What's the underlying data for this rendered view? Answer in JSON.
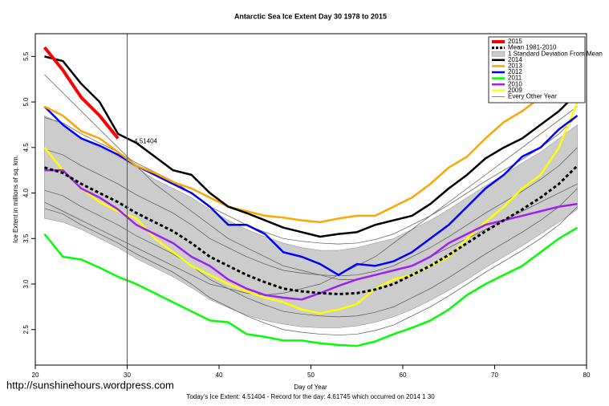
{
  "chart_data": {
    "type": "line",
    "title": "Antarctic Sea Ice Extent Day 30 1978 to 2015",
    "x_label": "Day of Year",
    "y_label": "Ice Extent in millions of sq. km.",
    "footer": "Today's Ice Extent: 4.51404  -  Record for the day: 4.61745 which occurred on 2014 1 30",
    "watermark": "http://sunshinehours.wordpress.com",
    "annotation": "4.51404",
    "marker_x": 30,
    "legend": "topright",
    "xlim": [
      20,
      80
    ],
    "ylim": [
      2.11,
      5.75
    ],
    "xticks": [
      20,
      30,
      40,
      50,
      60,
      70,
      80
    ],
    "yticks": [
      2.5,
      {
        "value": 3,
        "label": "3.0"
      },
      3.5,
      {
        "value": 4,
        "label": "4.0"
      },
      4.5,
      {
        "value": 5,
        "label": "5.0"
      },
      5.5
    ],
    "x": [
      21,
      23,
      25,
      27,
      29,
      31,
      33,
      35,
      37,
      39,
      41,
      43,
      45,
      47,
      49,
      51,
      53,
      55,
      57,
      59,
      61,
      63,
      65,
      67,
      69,
      71,
      73,
      75,
      77,
      79
    ],
    "band": {
      "name": "1 Standard Deviation From Mean",
      "color": "#cccccc",
      "upper": [
        4.85,
        4.75,
        4.6,
        4.5,
        4.4,
        4.28,
        4.15,
        4.05,
        3.95,
        3.82,
        3.7,
        3.6,
        3.52,
        3.45,
        3.4,
        3.37,
        3.37,
        3.4,
        3.45,
        3.5,
        3.6,
        3.7,
        3.82,
        3.95,
        4.08,
        4.2,
        4.33,
        4.45,
        4.6,
        4.75
      ],
      "lower": [
        3.72,
        3.68,
        3.6,
        3.5,
        3.4,
        3.28,
        3.18,
        3.08,
        2.96,
        2.83,
        2.74,
        2.66,
        2.6,
        2.56,
        2.53,
        2.52,
        2.52,
        2.54,
        2.58,
        2.64,
        2.72,
        2.82,
        2.93,
        3.05,
        3.18,
        3.3,
        3.42,
        3.55,
        3.68,
        3.82
      ]
    },
    "series": [
      {
        "name": "2015",
        "color": "#ff0000",
        "width": 4,
        "values": [
          5.6,
          5.35,
          5.05,
          4.85,
          4.6,
          null,
          null,
          null,
          null,
          null,
          null,
          null,
          null,
          null,
          null,
          null,
          null,
          null,
          null,
          null,
          null,
          null,
          null,
          null,
          null,
          null,
          null,
          null,
          null,
          null
        ]
      },
      {
        "name": "Mean 1981-2010",
        "color": "#000000",
        "width": 3,
        "dash": true,
        "values": [
          4.28,
          4.22,
          4.1,
          4.0,
          3.9,
          3.78,
          3.68,
          3.58,
          3.45,
          3.3,
          3.2,
          3.1,
          3.02,
          2.95,
          2.92,
          2.9,
          2.89,
          2.9,
          2.94,
          3.0,
          3.1,
          3.2,
          3.32,
          3.45,
          3.58,
          3.7,
          3.82,
          3.95,
          4.1,
          4.3
        ]
      },
      {
        "name": "2014",
        "color": "#000000",
        "width": 2.5,
        "values": [
          5.5,
          5.45,
          5.2,
          5.0,
          4.65,
          4.55,
          4.4,
          4.25,
          4.2,
          4.0,
          3.85,
          3.78,
          3.7,
          3.62,
          3.57,
          3.52,
          3.55,
          3.57,
          3.65,
          3.7,
          3.75,
          3.88,
          4.05,
          4.2,
          4.38,
          4.5,
          4.6,
          4.75,
          4.9,
          5.1
        ]
      },
      {
        "name": "2013",
        "color": "#ffa500",
        "width": 2.5,
        "values": [
          4.95,
          4.85,
          4.68,
          4.6,
          4.45,
          4.3,
          4.22,
          4.12,
          4.05,
          3.95,
          3.85,
          3.8,
          3.75,
          3.73,
          3.7,
          3.68,
          3.72,
          3.75,
          3.75,
          3.85,
          3.95,
          4.1,
          4.28,
          4.4,
          4.6,
          4.78,
          4.9,
          5.05,
          5.2,
          5.27
        ]
      },
      {
        "name": "2012",
        "color": "#0000ff",
        "width": 2.5,
        "values": [
          4.95,
          4.75,
          4.6,
          4.52,
          4.42,
          4.3,
          4.2,
          4.1,
          4.0,
          3.85,
          3.65,
          3.65,
          3.55,
          3.35,
          3.3,
          3.22,
          3.1,
          3.22,
          3.2,
          3.25,
          3.35,
          3.5,
          3.65,
          3.85,
          4.05,
          4.2,
          4.4,
          4.5,
          4.7,
          4.85
        ]
      },
      {
        "name": "2011",
        "color": "#00ff00",
        "width": 2.5,
        "values": [
          3.55,
          3.3,
          3.27,
          3.18,
          3.08,
          3.0,
          2.9,
          2.8,
          2.7,
          2.6,
          2.58,
          2.45,
          2.42,
          2.38,
          2.38,
          2.35,
          2.33,
          2.32,
          2.37,
          2.45,
          2.52,
          2.6,
          2.72,
          2.88,
          3.0,
          3.1,
          3.2,
          3.35,
          3.5,
          3.62
        ]
      },
      {
        "name": "2010",
        "color": "#a020f0",
        "width": 2.5,
        "values": [
          4.25,
          4.25,
          4.05,
          3.95,
          3.82,
          3.65,
          3.55,
          3.45,
          3.3,
          3.2,
          3.05,
          2.95,
          2.88,
          2.85,
          2.83,
          2.9,
          2.98,
          3.05,
          3.1,
          3.15,
          3.2,
          3.3,
          3.45,
          3.55,
          3.65,
          3.7,
          3.75,
          3.8,
          3.85,
          3.88
        ]
      },
      {
        "name": "2009",
        "color": "#ffff00",
        "width": 2.5,
        "values": [
          4.5,
          4.25,
          4.05,
          3.9,
          3.8,
          3.72,
          3.5,
          3.35,
          3.2,
          3.1,
          3.0,
          2.92,
          2.85,
          2.8,
          2.72,
          2.68,
          2.72,
          2.78,
          2.95,
          3.05,
          3.1,
          3.2,
          3.3,
          3.5,
          3.68,
          3.85,
          4.05,
          4.2,
          4.5,
          5.0
        ]
      }
    ],
    "other_years": {
      "name": "Every Other Year",
      "color": "#555555",
      "lines": [
        [
          4.83,
          4.77,
          4.65,
          4.55,
          4.45,
          4.33,
          4.23,
          4.13,
          4.0,
          3.85,
          3.75,
          3.65,
          3.57,
          3.5,
          3.47,
          3.45,
          3.44,
          3.45,
          3.49,
          3.55,
          3.65,
          3.75,
          3.87,
          4.0,
          4.13,
          4.25,
          4.37,
          4.5,
          4.65,
          4.85
        ],
        [
          4.48,
          4.42,
          4.3,
          4.2,
          4.1,
          3.98,
          3.88,
          3.78,
          3.65,
          3.5,
          3.4,
          3.3,
          3.22,
          3.15,
          3.12,
          3.1,
          3.09,
          3.1,
          3.14,
          3.2,
          3.3,
          3.4,
          3.52,
          3.65,
          3.78,
          3.9,
          4.02,
          4.15,
          4.3,
          4.5
        ],
        [
          4.03,
          3.97,
          3.85,
          3.75,
          3.65,
          3.53,
          3.43,
          3.33,
          3.2,
          3.05,
          2.95,
          2.85,
          2.77,
          2.7,
          2.67,
          2.65,
          2.64,
          2.65,
          2.69,
          2.75,
          2.85,
          2.95,
          3.07,
          3.2,
          3.33,
          3.45,
          3.57,
          3.7,
          3.85,
          4.05
        ],
        [
          3.83,
          3.77,
          3.65,
          3.55,
          3.45,
          3.33,
          3.23,
          3.13,
          3.0,
          2.85,
          2.75,
          2.65,
          2.57,
          2.5,
          2.47,
          2.45,
          2.44,
          2.45,
          2.49,
          2.55,
          2.65,
          2.75,
          2.87,
          3.0,
          3.13,
          3.25,
          3.37,
          3.5,
          3.65,
          3.85
        ],
        [
          5.3,
          5.1,
          4.9,
          4.7,
          4.5,
          4.3,
          4.1,
          3.95,
          3.8,
          3.65,
          3.5,
          3.4,
          3.3,
          3.2,
          3.15,
          3.1,
          3.05,
          3.05,
          3.1,
          3.15,
          3.2,
          3.3,
          3.4,
          3.5,
          3.6,
          3.7,
          3.8,
          3.9,
          4.0,
          4.1
        ],
        [
          3.9,
          3.8,
          3.7,
          3.6,
          3.5,
          3.4,
          3.3,
          3.2,
          3.1,
          3.0,
          2.95,
          2.9,
          2.88,
          2.9,
          2.95,
          3.0,
          3.1,
          3.2,
          3.3,
          3.45,
          3.6,
          3.75,
          3.9,
          4.05,
          4.2,
          4.35,
          4.5,
          4.65,
          4.8,
          4.95
        ]
      ]
    }
  }
}
